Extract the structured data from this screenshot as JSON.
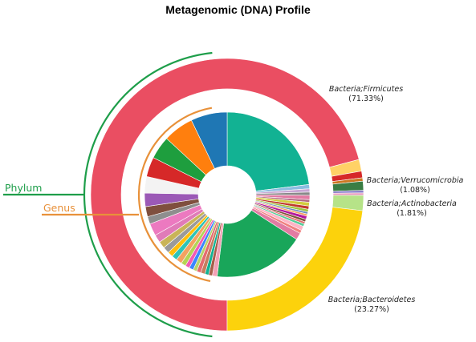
{
  "chart_data": {
    "type": "pie",
    "title": "Metagenomic (DNA) Profile",
    "rings": [
      {
        "name": "Phylum",
        "color": "#1e9e4a",
        "slices": [
          {
            "label": "Bacteria;Firmicutes",
            "value": 71.33,
            "pct_text": "(71.33%)",
            "color": "#ea4e62"
          },
          {
            "label": "",
            "value": 1.4,
            "color": "#ffd166"
          },
          {
            "label": "",
            "value": 0.8,
            "color": "#d62828"
          },
          {
            "label": "",
            "value": 0.4,
            "color": "#cc7722"
          },
          {
            "label": "Bacteria;Verrucomicrobia",
            "value": 1.08,
            "pct_text": "(1.08%)",
            "color": "#3a7d44"
          },
          {
            "label": "",
            "value": 0.3,
            "color": "#8a7ec9"
          },
          {
            "label": "",
            "value": 0.3,
            "color": "#e89bbd"
          },
          {
            "label": "Bacteria;Actinobacteria",
            "value": 1.81,
            "pct_text": "(1.81%)",
            "color": "#b6e388"
          },
          {
            "label": "Bacteria;Bacteroidetes",
            "value": 23.27,
            "pct_text": "(23.27%)",
            "color": "#fcd20c"
          }
        ]
      },
      {
        "name": "Genus",
        "color": "#e8913a",
        "slices": [
          {
            "value": 22.0,
            "color": "#12b293"
          },
          {
            "value": 0.8,
            "color": "#8bbde0"
          },
          {
            "value": 0.6,
            "color": "#c8a7d4"
          },
          {
            "value": 0.6,
            "color": "#888888"
          },
          {
            "value": 0.8,
            "color": "#e27ba3"
          },
          {
            "value": 0.5,
            "color": "#b36b84"
          },
          {
            "value": 0.7,
            "color": "#d2cd3f"
          },
          {
            "value": 0.6,
            "color": "#c0392b"
          },
          {
            "value": 0.5,
            "color": "#9bc53d"
          },
          {
            "value": 0.4,
            "color": "#6c8ebf"
          },
          {
            "value": 0.4,
            "color": "#f4a261"
          },
          {
            "value": 0.6,
            "color": "#b5179e"
          },
          {
            "value": 0.5,
            "color": "#7f5539"
          },
          {
            "value": 0.4,
            "color": "#e56b6f"
          },
          {
            "value": 0.5,
            "color": "#57cc99"
          },
          {
            "value": 0.8,
            "color": "#ffb4c6"
          },
          {
            "value": 0.6,
            "color": "#f08080"
          },
          {
            "value": 1.3,
            "color": "#e27ba3"
          },
          {
            "value": 17.0,
            "color": "#19a65a"
          },
          {
            "value": 0.9,
            "color": "#f2a0b5"
          },
          {
            "value": 0.7,
            "color": "#a85e4a"
          },
          {
            "value": 0.7,
            "color": "#12b293"
          },
          {
            "value": 0.8,
            "color": "#c77d5e"
          },
          {
            "value": 0.8,
            "color": "#e56b6f"
          },
          {
            "value": 0.7,
            "color": "#b6d36a"
          },
          {
            "value": 0.8,
            "color": "#3a86ff"
          },
          {
            "value": 0.8,
            "color": "#f15bb5"
          },
          {
            "value": 0.9,
            "color": "#b4d455"
          },
          {
            "value": 1.1,
            "color": "#f4a261"
          },
          {
            "value": 1.0,
            "color": "#2ec4b6"
          },
          {
            "value": 1.0,
            "color": "#ffbe0b"
          },
          {
            "value": 1.2,
            "color": "#9a9a9a"
          },
          {
            "value": 1.3,
            "color": "#c9b458"
          },
          {
            "value": 1.5,
            "color": "#e07bb8"
          },
          {
            "value": 2.3,
            "color": "#ec79c0"
          },
          {
            "value": 1.4,
            "color": "#8e8e8e"
          },
          {
            "value": 1.9,
            "color": "#7f4f3e"
          },
          {
            "value": 2.5,
            "color": "#9b59b6"
          },
          {
            "value": 3.1,
            "color": "#f3f3f3"
          },
          {
            "value": 3.7,
            "color": "#d62828"
          },
          {
            "value": 4.3,
            "color": "#1e9e3e"
          },
          {
            "value": 5.7,
            "color": "#ff7f0e"
          },
          {
            "value": 6.8,
            "color": "#1f77b4"
          }
        ]
      }
    ]
  }
}
